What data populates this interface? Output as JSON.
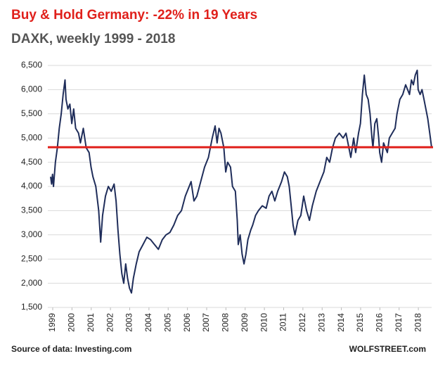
{
  "chart_data": {
    "type": "line",
    "title": "Buy & Hold Germany: -22% in 19 Years",
    "subtitle": "DAXK, weekly 1999 - 2018",
    "source": "Source of data: Investing.com",
    "credit": "WOLFSTREET.com",
    "xlim": [
      1999,
      2018.8
    ],
    "xticks": [
      1999,
      2000,
      2001,
      2002,
      2003,
      2004,
      2005,
      2006,
      2007,
      2008,
      2009,
      2010,
      2011,
      2012,
      2013,
      2014,
      2015,
      2016,
      2017,
      2018
    ],
    "ylim": [
      1500,
      6500
    ],
    "yticks": [
      {
        "value": 1500,
        "label": "1,500"
      },
      {
        "value": 2000,
        "label": "2,000"
      },
      {
        "value": 2500,
        "label": "2,500"
      },
      {
        "value": 3000,
        "label": "3,000"
      },
      {
        "value": 3500,
        "label": "3,500"
      },
      {
        "value": 4000,
        "label": "4,000"
      },
      {
        "value": 4500,
        "label": "4,500"
      },
      {
        "value": 5000,
        "label": "5,000"
      },
      {
        "value": 5500,
        "label": "5,500"
      },
      {
        "value": 6000,
        "label": "6,000"
      },
      {
        "value": 6500,
        "label": "6,500"
      }
    ],
    "grid": true,
    "reference_line": {
      "value": 4810,
      "color": "#e0201b"
    },
    "x": [
      1999.0,
      1999.05,
      1999.1,
      1999.15,
      1999.25,
      1999.35,
      1999.45,
      1999.55,
      1999.65,
      1999.75,
      1999.8,
      1999.9,
      2000.0,
      2000.1,
      2000.2,
      2000.3,
      2000.45,
      2000.55,
      2000.7,
      2000.85,
      2001.0,
      2001.1,
      2001.2,
      2001.35,
      2001.5,
      2001.6,
      2001.7,
      2001.85,
      2002.0,
      2002.15,
      2002.3,
      2002.4,
      2002.5,
      2002.6,
      2002.7,
      2002.8,
      2002.9,
      2003.0,
      2003.1,
      2003.2,
      2003.3,
      2003.45,
      2003.6,
      2003.8,
      2004.0,
      2004.2,
      2004.4,
      2004.6,
      2004.8,
      2005.0,
      2005.2,
      2005.4,
      2005.6,
      2005.8,
      2006.0,
      2006.2,
      2006.3,
      2006.45,
      2006.6,
      2006.8,
      2007.0,
      2007.2,
      2007.4,
      2007.55,
      2007.65,
      2007.75,
      2007.85,
      2008.0,
      2008.1,
      2008.2,
      2008.35,
      2008.45,
      2008.6,
      2008.7,
      2008.75,
      2008.85,
      2008.95,
      2009.05,
      2009.15,
      2009.25,
      2009.4,
      2009.5,
      2009.65,
      2009.8,
      2010.0,
      2010.2,
      2010.35,
      2010.5,
      2010.65,
      2010.8,
      2011.0,
      2011.15,
      2011.3,
      2011.4,
      2011.5,
      2011.6,
      2011.7,
      2011.85,
      2012.0,
      2012.15,
      2012.3,
      2012.45,
      2012.6,
      2012.8,
      2013.0,
      2013.2,
      2013.35,
      2013.5,
      2013.65,
      2013.8,
      2014.0,
      2014.2,
      2014.35,
      2014.5,
      2014.6,
      2014.75,
      2014.85,
      2015.0,
      2015.1,
      2015.2,
      2015.3,
      2015.4,
      2015.5,
      2015.6,
      2015.7,
      2015.75,
      2015.85,
      2015.95,
      2016.05,
      2016.1,
      2016.2,
      2016.3,
      2016.4,
      2016.5,
      2016.6,
      2016.75,
      2016.9,
      2017.0,
      2017.15,
      2017.3,
      2017.45,
      2017.55,
      2017.65,
      2017.75,
      2017.85,
      2017.95,
      2018.05,
      2018.1,
      2018.2,
      2018.3,
      2018.4,
      2018.5,
      2018.6,
      2018.7,
      2018.8
    ],
    "series": [
      {
        "name": "DAXK",
        "color": "#1f2d5a",
        "values": [
          4200,
          4050,
          4250,
          4000,
          4500,
          4800,
          5200,
          5500,
          5900,
          6200,
          5800,
          5600,
          5700,
          5300,
          5600,
          5200,
          5100,
          4900,
          5200,
          4800,
          4700,
          4400,
          4200,
          4000,
          3500,
          2850,
          3400,
          3800,
          4000,
          3900,
          4050,
          3700,
          3100,
          2600,
          2200,
          2000,
          2400,
          2100,
          1900,
          1800,
          2100,
          2400,
          2650,
          2800,
          2950,
          2900,
          2800,
          2700,
          2900,
          3000,
          3050,
          3200,
          3400,
          3500,
          3800,
          4000,
          4100,
          3700,
          3800,
          4100,
          4400,
          4600,
          5000,
          5250,
          4900,
          5200,
          5100,
          4800,
          4300,
          4500,
          4400,
          4000,
          3900,
          3300,
          2800,
          3000,
          2600,
          2400,
          2600,
          2900,
          3100,
          3200,
          3400,
          3500,
          3600,
          3550,
          3800,
          3900,
          3700,
          3900,
          4100,
          4300,
          4200,
          4000,
          3600,
          3200,
          3000,
          3300,
          3400,
          3800,
          3500,
          3300,
          3600,
          3900,
          4100,
          4300,
          4600,
          4500,
          4800,
          5000,
          5100,
          5000,
          5100,
          4800,
          4600,
          5000,
          4700,
          5100,
          5300,
          5900,
          6300,
          5900,
          5800,
          5500,
          5000,
          4800,
          5300,
          5400,
          5000,
          4700,
          4500,
          4900,
          4800,
          4700,
          5000,
          5100,
          5200,
          5500,
          5800,
          5900,
          6100,
          6000,
          5900,
          6200,
          6100,
          6300,
          6400,
          6000,
          5900,
          6000,
          5800,
          5600,
          5400,
          5100,
          4800
        ]
      }
    ]
  }
}
